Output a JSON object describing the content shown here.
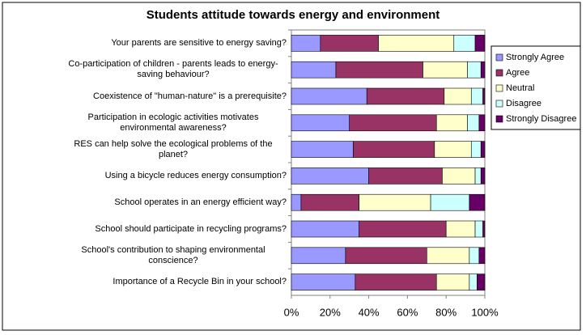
{
  "chart_data": {
    "type": "stacked-bar-horizontal",
    "title": "Students attitude towards energy and environment",
    "categories": [
      "Your parents are sensitive to energy saving?",
      "Co-participation of children - parents leads to energy-saving behaviour?",
      "Coexistence of \"human-nature\" is a prerequisite?",
      "Participation in ecologic activities motivates environmental awareness?",
      "RES can help solve the ecological problems of the planet?",
      "Using a bicycle reduces energy consumption?",
      "School operates in an energy efficient way?",
      "School should participate in recycling programs?",
      "School's contribution to shaping environmental conscience?",
      "Importance of a Recycle Bin in your school?"
    ],
    "series": [
      {
        "name": "Strongly Agree",
        "color": "#9999ff",
        "values": [
          15,
          23,
          39,
          30,
          32,
          40,
          5,
          35,
          28,
          33
        ]
      },
      {
        "name": "Agree",
        "color": "#993366",
        "values": [
          30,
          45,
          40,
          45,
          42,
          38,
          30,
          45,
          42,
          42
        ]
      },
      {
        "name": "Neutral",
        "color": "#ffffcc",
        "values": [
          39,
          23,
          14,
          16,
          19,
          17,
          37,
          15,
          22,
          17
        ]
      },
      {
        "name": "Disagree",
        "color": "#ccffff",
        "values": [
          11,
          7,
          6,
          6,
          5,
          3,
          20,
          4,
          5,
          4
        ]
      },
      {
        "name": "Strongly Disagree",
        "color": "#660066",
        "values": [
          5,
          2,
          1,
          3,
          2,
          2,
          8,
          1,
          3,
          4
        ]
      }
    ],
    "xlim": [
      0,
      100
    ],
    "xticks": [
      {
        "value": 0,
        "label": "0%"
      },
      {
        "value": 20,
        "label": "20%"
      },
      {
        "value": 40,
        "label": "40%"
      },
      {
        "value": 60,
        "label": "60%"
      },
      {
        "value": 80,
        "label": "80%"
      },
      {
        "value": 100,
        "label": "100%"
      }
    ],
    "legend": "right"
  }
}
